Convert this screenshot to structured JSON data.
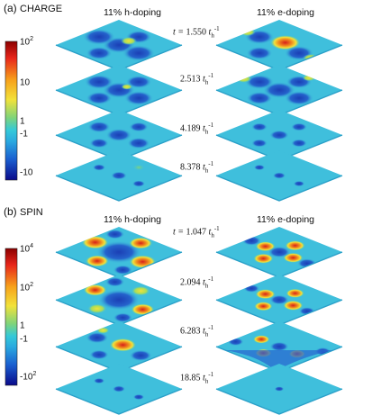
{
  "charge": {
    "label_letter": "(a)",
    "label_word": "CHARGE",
    "col_left": "11% h-doping",
    "col_right": "11% e-doping",
    "times": [
      {
        "prefix": "t = ",
        "value": "1.550",
        "unit": "t",
        "sub": "h",
        "sup": "-1"
      },
      {
        "prefix": "",
        "value": "2.513",
        "unit": "t",
        "sub": "h",
        "sup": "-1"
      },
      {
        "prefix": "",
        "value": "4.189",
        "unit": "t",
        "sub": "h",
        "sup": "-1"
      },
      {
        "prefix": "",
        "value": "8.378",
        "unit": "t",
        "sub": "h",
        "sup": "-1"
      }
    ],
    "colorbar_ticks": [
      {
        "base": "10",
        "exp": "2"
      },
      {
        "base": "10",
        "exp": ""
      },
      {
        "base": "1",
        "exp": ""
      },
      {
        "base": "-1",
        "exp": ""
      },
      {
        "base": "-10",
        "exp": ""
      }
    ]
  },
  "spin": {
    "label_letter": "(b)",
    "label_word": "SPIN",
    "col_left": "11% h-doping",
    "col_right": "11% e-doping",
    "times": [
      {
        "prefix": "t = ",
        "value": "1.047",
        "unit": "t",
        "sub": "h",
        "sup": "-1"
      },
      {
        "prefix": "",
        "value": "2.094",
        "unit": "t",
        "sub": "h",
        "sup": "-1"
      },
      {
        "prefix": "",
        "value": "6.283",
        "unit": "t",
        "sub": "h",
        "sup": "-1"
      },
      {
        "prefix": "",
        "value": "18.85",
        "unit": "t",
        "sub": "h",
        "sup": "-1"
      }
    ],
    "colorbar_ticks": [
      {
        "base": "10",
        "exp": "4"
      },
      {
        "base": "10",
        "exp": "2"
      },
      {
        "base": "1",
        "exp": ""
      },
      {
        "base": "-1",
        "exp": ""
      },
      {
        "base": "-10",
        "exp": "2"
      }
    ]
  },
  "colors": {
    "surface_base": "#3fbfdc",
    "surface_dark": "#1a3fb8",
    "peak_red": "#e8251a",
    "peak_yellow": "#f2e23a"
  }
}
